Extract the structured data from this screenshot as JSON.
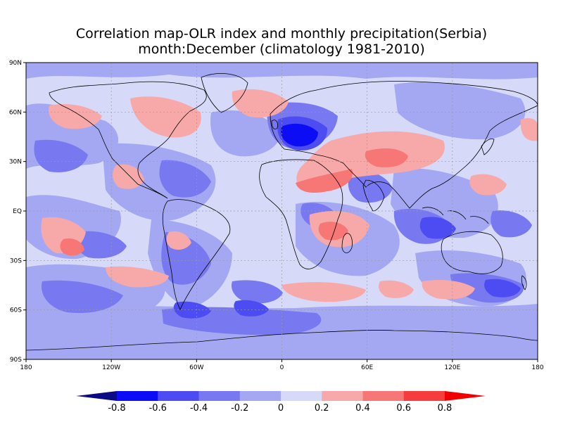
{
  "title": {
    "line1": "Correlation map-OLR index and monthly precipitation(Serbia)",
    "line2": "month:December (climatology 1981-2010)"
  },
  "axes": {
    "lat_ticks": [
      "90N",
      "60N",
      "30N",
      "EQ",
      "30S",
      "60S",
      "90S"
    ],
    "lon_ticks": [
      "180",
      "120W",
      "60W",
      "0",
      "60E",
      "120E",
      "180"
    ],
    "lat_range": [
      -90,
      90
    ],
    "lon_range": [
      -180,
      180
    ],
    "grid": true
  },
  "colorbar": {
    "labels": [
      "-0.8",
      "-0.6",
      "-0.4",
      "-0.2",
      "0",
      "0.2",
      "0.4",
      "0.6",
      "0.8"
    ],
    "colors": [
      "#0a0a87",
      "#0d0df5",
      "#4c4cf2",
      "#7878f0",
      "#a4a8f2",
      "#d6d9f8",
      "#f7a9a9",
      "#f77676",
      "#f53d3d",
      "#f00000"
    ]
  },
  "colors": {
    "neutral": "#d6d9f8",
    "coast": "#000000",
    "grid": "#9a9a9a"
  }
}
